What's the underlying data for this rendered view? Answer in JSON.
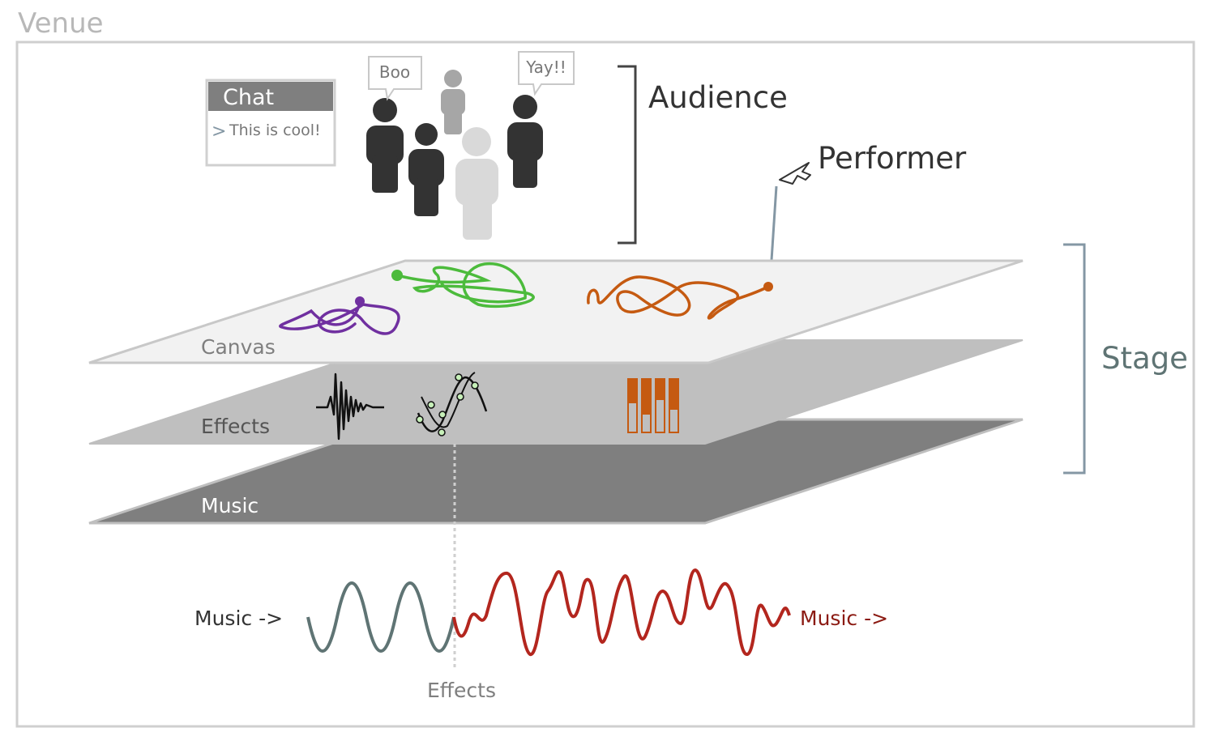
{
  "venue": {
    "label": "Venue"
  },
  "chat": {
    "title": "Chat",
    "message": "This is cool!",
    "prompt_symbol": ">"
  },
  "audience": {
    "label": "Audience",
    "bubbles": [
      {
        "text": "Boo"
      },
      {
        "text": "Yay!!"
      }
    ]
  },
  "performer": {
    "label": "Performer"
  },
  "stage": {
    "label": "Stage",
    "layers": [
      {
        "name": "Canvas"
      },
      {
        "name": "Effects"
      },
      {
        "name": "Music"
      }
    ]
  },
  "signal": {
    "input_label": "Music ->",
    "output_label": "Music ->",
    "effects_label": "Effects"
  },
  "colors": {
    "venue_border": "#cfcfcf",
    "venue_label": "#b8b8b8",
    "canvas_fill": "#f2f2f2",
    "effects_fill": "#bfbfbf",
    "music_fill": "#7f7f7f",
    "stroke_purple": "#7030a0",
    "stroke_green": "#4cbb3c",
    "stroke_orange": "#c55a11",
    "wave_input": "#5f7474",
    "wave_output": "#b3261e",
    "stage_bracket": "#8497a4",
    "audience_dark": "#333333",
    "audience_mid": "#a6a6a6",
    "audience_light": "#d9d9d9"
  }
}
